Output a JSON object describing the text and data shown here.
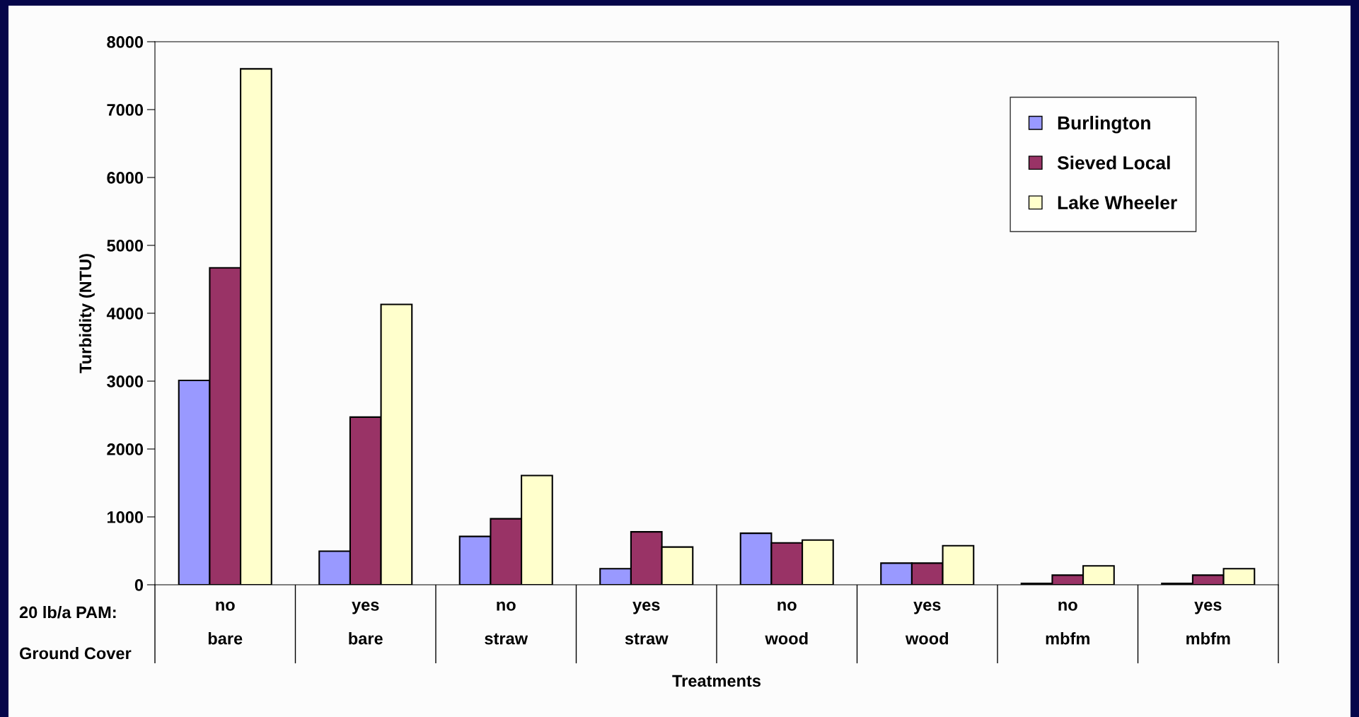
{
  "chart_data": {
    "type": "bar",
    "categories": [
      "no\nbare",
      "yes\nbare",
      "no\nstraw",
      "yes\nstraw",
      "no\nwood",
      "yes\nwood",
      "no\nmbfm",
      "yes\nmbfm"
    ],
    "series": [
      {
        "name": "Burlington",
        "color": "#9999ff",
        "values": [
          3010,
          495,
          712,
          237,
          759,
          319,
          20,
          20
        ]
      },
      {
        "name": "Sieved Local",
        "color": "#993366",
        "values": [
          4670,
          2470,
          973,
          780,
          617,
          319,
          142,
          142
        ]
      },
      {
        "name": "Lake Wheeler",
        "color": "#ffffcc",
        "values": [
          7600,
          4130,
          1610,
          556,
          658,
          576,
          278,
          237
        ]
      }
    ],
    "xlabel": "Treatments",
    "ylabel": "Turbidity (NTU)",
    "ylim": [
      0,
      8000
    ],
    "yticks": [
      0,
      1000,
      2000,
      3000,
      4000,
      5000,
      6000,
      7000,
      8000
    ],
    "annotations": [
      "20 lb/a PAM:",
      "Ground Cover"
    ],
    "legend": "top right",
    "grid": false
  }
}
